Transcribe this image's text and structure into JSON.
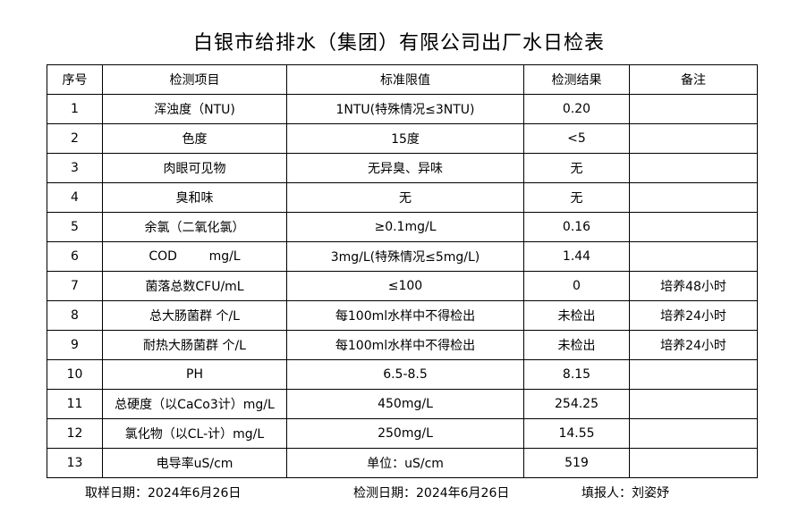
{
  "title": "白银市给排水（集团）有限公司出厂水日检表",
  "headers": [
    "序号",
    "检测项目",
    "标准限值",
    "检测结果",
    "备注"
  ],
  "rows": [
    [
      "1",
      "浑浊度（NTU)",
      "1NTU(特殊情况≤3NTU)",
      "0.20",
      ""
    ],
    [
      "2",
      "色度",
      "15度",
      "<5",
      ""
    ],
    [
      "3",
      "肉眼可见物",
      "无异臭、异味",
      "无",
      ""
    ],
    [
      "4",
      "臭和味",
      "无",
      "无",
      ""
    ],
    [
      "5",
      "余氯（二氧化氯）",
      "≥0.1mg/L",
      "0.16",
      ""
    ],
    [
      "6",
      "COD        mg/L",
      "3mg/L(特殊情况≤5mg/L)",
      "1.44",
      ""
    ],
    [
      "7",
      "菌落总数CFU/mL",
      "≤100",
      "0",
      "培养48小时"
    ],
    [
      "8",
      "总大肠菌群 个/L",
      "每100ml水样中不得检出",
      "未检出",
      "培养24小时"
    ],
    [
      "9",
      "耐热大肠菌群 个/L",
      "每100ml水样中不得检出",
      "未检出",
      "培养24小时"
    ],
    [
      "10",
      "PH",
      "6.5-8.5",
      "8.15",
      ""
    ],
    [
      "11",
      "总硬度（以CaCo3计）mg/L",
      "450mg/L",
      "254.25",
      ""
    ],
    [
      "12",
      "氯化物（以CL-计）mg/L",
      "250mg/L",
      "14.55",
      ""
    ],
    [
      "13",
      "电导率uS/cm",
      "单位：uS/cm",
      "519",
      ""
    ]
  ],
  "footer": {
    "sampling_date": "取样日期：2024年6月26日",
    "test_date": "检测日期：2024年6月26日",
    "reporter": "填报人：刘姿妤"
  }
}
